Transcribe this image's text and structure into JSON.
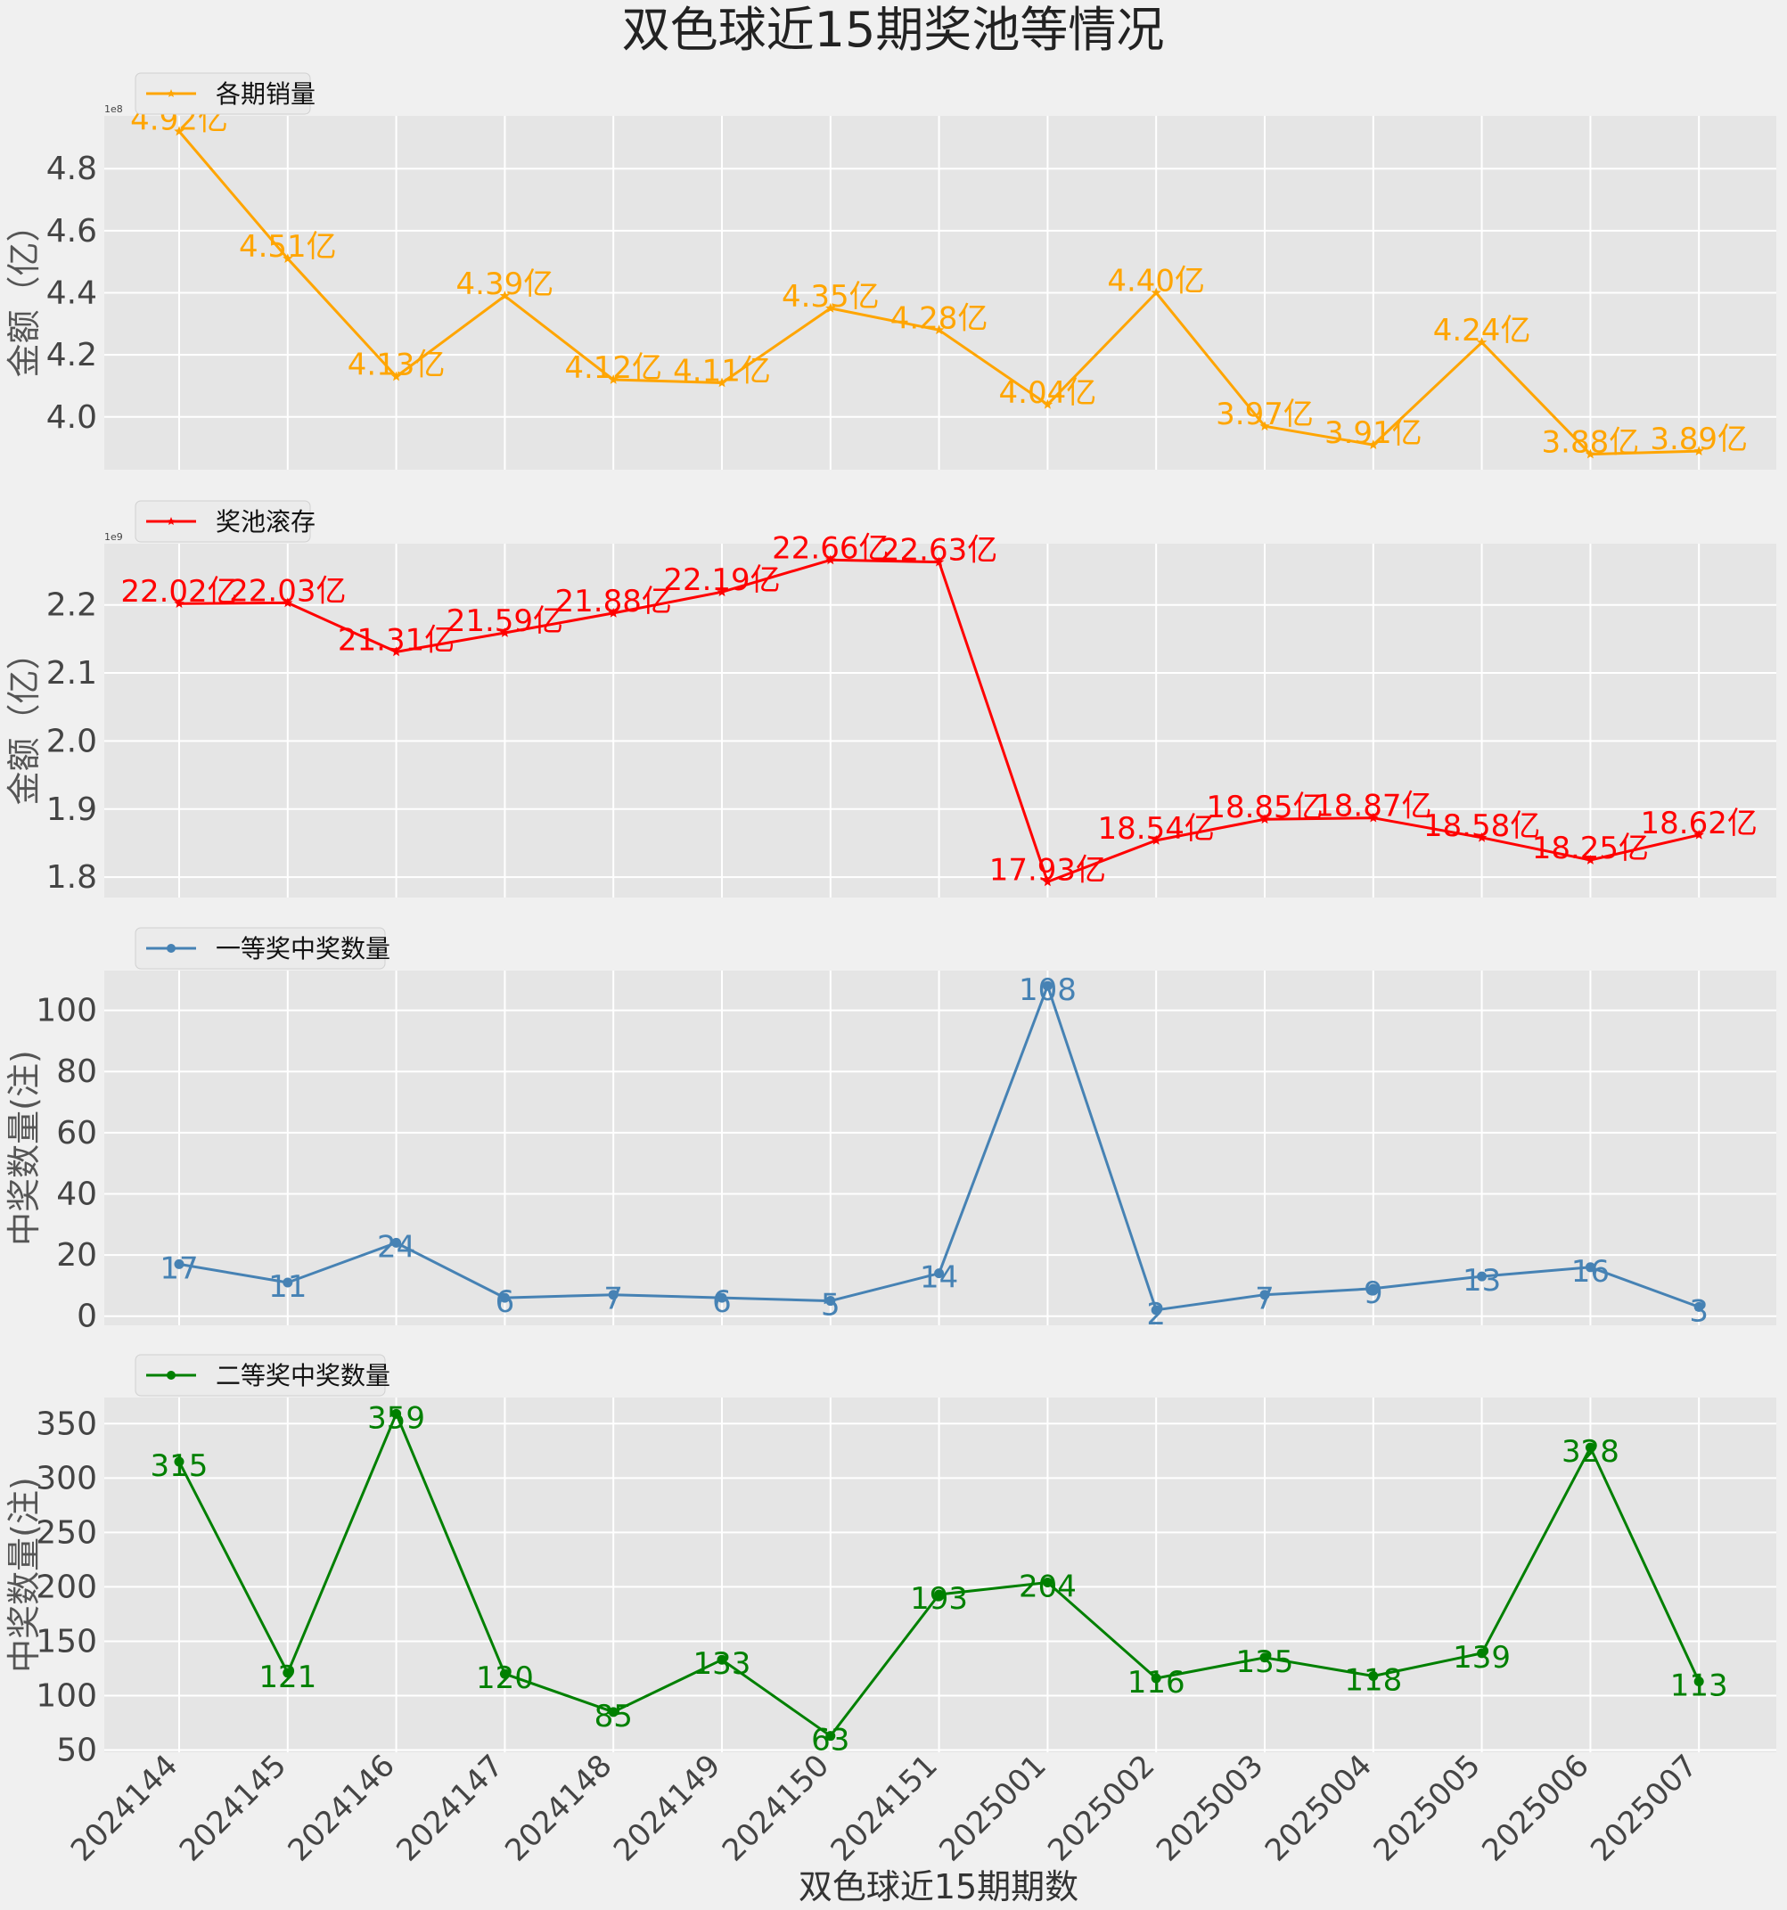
{
  "page": {
    "title": "双色球近15期奖池等情况",
    "xlabel": "双色球近15期期数"
  },
  "chart_data": {
    "type": "line",
    "categories": [
      "2024144",
      "2024145",
      "2024146",
      "2024147",
      "2024148",
      "2024149",
      "2024150",
      "2024151",
      "2025001",
      "2025002",
      "2025003",
      "2025004",
      "2025005",
      "2025006",
      "2025007"
    ],
    "panels": [
      {
        "name": "各期销量",
        "color": "#ffa500",
        "marker": "star",
        "ylabel": "金额（亿）",
        "exponent_label": "1e8",
        "ylim": [
          3.83,
          4.97
        ],
        "yticks": [
          4.0,
          4.2,
          4.4,
          4.6,
          4.8
        ],
        "ytick_labels": [
          "4.0",
          "4.2",
          "4.4",
          "4.6",
          "4.8"
        ],
        "values": [
          4.92,
          4.51,
          4.13,
          4.39,
          4.12,
          4.11,
          4.35,
          4.28,
          4.04,
          4.4,
          3.97,
          3.91,
          4.24,
          3.88,
          3.89
        ],
        "data_labels": [
          "4.92亿",
          "4.51亿",
          "4.13亿",
          "4.39亿",
          "4.12亿",
          "4.11亿",
          "4.35亿",
          "4.28亿",
          "4.04亿",
          "4.40亿",
          "3.97亿",
          "3.91亿",
          "4.24亿",
          "3.88亿",
          "3.89亿"
        ],
        "label_offset": 0
      },
      {
        "name": "奖池滚存",
        "color": "#ff0000",
        "marker": "star",
        "ylabel": "金额（亿）",
        "exponent_label": "1e9",
        "ylim": [
          1.77,
          2.29
        ],
        "yticks": [
          1.8,
          1.9,
          2.0,
          2.1,
          2.2
        ],
        "ytick_labels": [
          "1.8",
          "1.9",
          "2.0",
          "2.1",
          "2.2"
        ],
        "values": [
          2.202,
          2.203,
          2.131,
          2.159,
          2.188,
          2.219,
          2.266,
          2.263,
          1.793,
          1.854,
          1.885,
          1.887,
          1.858,
          1.825,
          1.862
        ],
        "data_labels": [
          "22.02亿",
          "22.03亿",
          "21.31亿",
          "21.59亿",
          "21.88亿",
          "22.19亿",
          "22.66亿",
          "22.63亿",
          "17.93亿",
          "18.54亿",
          "18.85亿",
          "18.87亿",
          "18.58亿",
          "18.25亿",
          "18.62亿"
        ],
        "label_offset": 0
      },
      {
        "name": "一等奖中奖数量",
        "color": "#4682b4",
        "marker": "circle",
        "ylabel": "中奖数量(注)",
        "exponent_label": "",
        "ylim": [
          -3,
          113
        ],
        "yticks": [
          0,
          20,
          40,
          60,
          80,
          100
        ],
        "ytick_labels": [
          "0",
          "20",
          "40",
          "60",
          "80",
          "100"
        ],
        "values": [
          17,
          11,
          24,
          6,
          7,
          6,
          5,
          14,
          108,
          2,
          7,
          9,
          13,
          16,
          3
        ],
        "data_labels": [
          "17",
          "11",
          "24",
          "6",
          "7",
          "6",
          "5",
          "14",
          "108",
          "2",
          "7",
          "9",
          "13",
          "16",
          "3"
        ],
        "label_offset": 18
      },
      {
        "name": "二等奖中奖数量",
        "color": "#008000",
        "marker": "circle",
        "ylabel": "中奖数量(注)",
        "exponent_label": "",
        "ylim": [
          48,
          374
        ],
        "yticks": [
          50,
          100,
          150,
          200,
          250,
          300,
          350
        ],
        "ytick_labels": [
          "50",
          "100",
          "150",
          "200",
          "250",
          "300",
          "350"
        ],
        "values": [
          315,
          121,
          359,
          120,
          85,
          133,
          63,
          193,
          204,
          116,
          135,
          118,
          139,
          328,
          113
        ],
        "data_labels": [
          "315",
          "121",
          "359",
          "120",
          "85",
          "133",
          "63",
          "193",
          "204",
          "116",
          "135",
          "118",
          "139",
          "328",
          "113"
        ],
        "label_offset": 18
      }
    ]
  }
}
